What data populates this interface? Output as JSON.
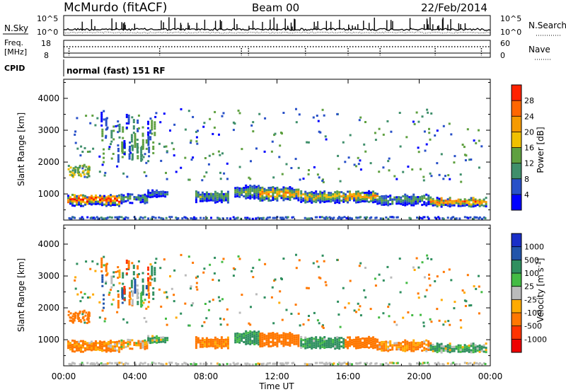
{
  "header": {
    "station": "McMurdo (fitACF)",
    "beam": "Beam 00",
    "date": "22/Feb/2014"
  },
  "colors": {
    "power_scale": [
      "#0000ff",
      "#2850c8",
      "#3f8f6b",
      "#5fa040",
      "#f0c000",
      "#f59a00",
      "#ff6600",
      "#ff2200",
      "#ee0000"
    ],
    "velocity_scale": [
      "#ee0000",
      "#ff3300",
      "#ff7700",
      "#ffaa00",
      "#bbbbbb",
      "#44bb44",
      "#2f8f5f",
      "#2255aa",
      "#1a2fc8"
    ]
  },
  "top_panels": {
    "nsky": {
      "label": "N.Sky",
      "tick_high": "10^5",
      "tick_low": "10^0",
      "right_label": "N.Search",
      "right_tick_high": "10^5",
      "right_tick_low": "10^0"
    },
    "freq": {
      "label": "Freq.",
      "unit": "[MHz]",
      "tick_high": "18",
      "tick_low": "8",
      "right_label": "Nave",
      "right_tick_high": "60",
      "right_tick_low": "0"
    },
    "cpid": {
      "label": "CPID",
      "program": "normal (fast) 151 RF"
    }
  },
  "chart_data": [
    {
      "type": "heatmap",
      "panel": "power",
      "ylabel": "Slant Range [km]",
      "yticks": [
        "1000",
        "2000",
        "3000",
        "4000"
      ],
      "ylim": [
        180,
        4600
      ],
      "xlim_hours": [
        0,
        24
      ],
      "colorbar": {
        "label": "Power [dB]",
        "ticks": [
          "4",
          "8",
          "12",
          "16",
          "20",
          "24",
          "28"
        ],
        "range": [
          0,
          32
        ]
      },
      "echo_bands": [
        {
          "start_hour": 0.2,
          "end_hour": 3.2,
          "center_km": 850,
          "width_km": 320,
          "peak_db": 30
        },
        {
          "start_hour": 3.2,
          "end_hour": 4.7,
          "center_km": 900,
          "width_km": 260,
          "peak_db": 12
        },
        {
          "start_hour": 4.7,
          "end_hour": 5.8,
          "center_km": 1050,
          "width_km": 200,
          "peak_db": 8
        },
        {
          "start_hour": 7.4,
          "end_hour": 9.2,
          "center_km": 950,
          "width_km": 300,
          "peak_db": 14
        },
        {
          "start_hour": 9.6,
          "end_hour": 11.0,
          "center_km": 1100,
          "width_km": 360,
          "peak_db": 14
        },
        {
          "start_hour": 11.0,
          "end_hour": 13.2,
          "center_km": 1050,
          "width_km": 380,
          "peak_db": 22
        },
        {
          "start_hour": 13.3,
          "end_hour": 15.8,
          "center_km": 950,
          "width_km": 320,
          "peak_db": 18
        },
        {
          "start_hour": 15.8,
          "end_hour": 17.6,
          "center_km": 950,
          "width_km": 300,
          "peak_db": 22
        },
        {
          "start_hour": 17.6,
          "end_hour": 20.6,
          "center_km": 850,
          "width_km": 280,
          "peak_db": 12
        },
        {
          "start_hour": 20.6,
          "end_hour": 23.8,
          "center_km": 780,
          "width_km": 240,
          "peak_db": 26
        }
      ]
    },
    {
      "type": "heatmap",
      "panel": "velocity",
      "ylabel": "Slant Range [km]",
      "yticks": [
        "1000",
        "2000",
        "3000",
        "4000"
      ],
      "ylim": [
        180,
        4600
      ],
      "xlim_hours": [
        0,
        24
      ],
      "xticks": [
        "00:00",
        "04:00",
        "08:00",
        "12:00",
        "16:00",
        "20:00",
        "00:00"
      ],
      "xlabel": "Time UT",
      "colorbar": {
        "label": "Velocity [m s",
        "label_sup": "-1",
        "label_end": "]",
        "ticks": [
          "-1000",
          "-500",
          "-100",
          "-25",
          "25",
          "100",
          "500",
          "1000"
        ]
      },
      "echo_bands": [
        {
          "start_hour": 0.2,
          "end_hour": 3.2,
          "center_km": 850,
          "width_km": 320,
          "velocity": -150
        },
        {
          "start_hour": 3.2,
          "end_hour": 4.7,
          "center_km": 900,
          "width_km": 260,
          "velocity": -100
        },
        {
          "start_hour": 4.7,
          "end_hour": 5.8,
          "center_km": 1050,
          "width_km": 200,
          "velocity": 50
        },
        {
          "start_hour": 7.4,
          "end_hour": 9.2,
          "center_km": 950,
          "width_km": 300,
          "velocity": -200
        },
        {
          "start_hour": 9.6,
          "end_hour": 11.0,
          "center_km": 1100,
          "width_km": 360,
          "velocity": 200
        },
        {
          "start_hour": 11.0,
          "end_hour": 13.2,
          "center_km": 1050,
          "width_km": 380,
          "velocity": -300
        },
        {
          "start_hour": 13.3,
          "end_hour": 15.8,
          "center_km": 950,
          "width_km": 320,
          "velocity": 150
        },
        {
          "start_hour": 15.8,
          "end_hour": 17.6,
          "center_km": 950,
          "width_km": 300,
          "velocity": -250
        },
        {
          "start_hour": 17.6,
          "end_hour": 20.6,
          "center_km": 850,
          "width_km": 280,
          "velocity": -150
        },
        {
          "start_hour": 20.6,
          "end_hour": 23.8,
          "center_km": 780,
          "width_km": 240,
          "velocity": 100
        }
      ]
    }
  ]
}
